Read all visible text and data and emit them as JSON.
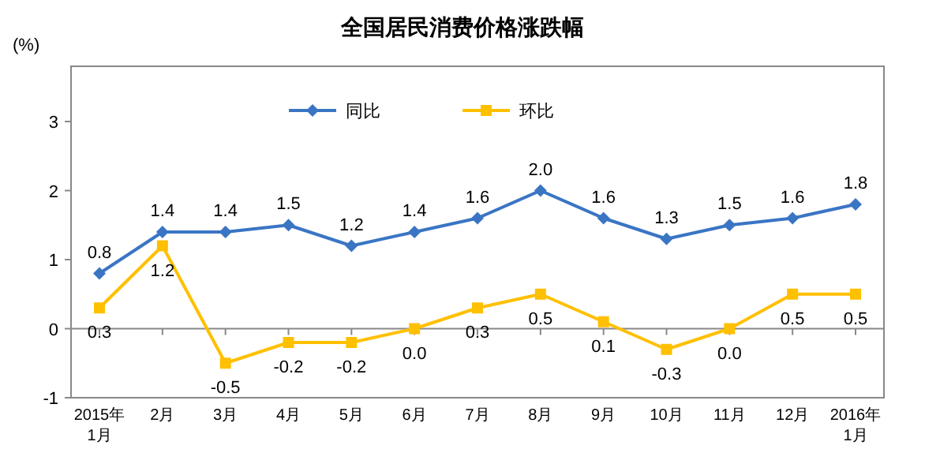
{
  "chart_data": {
    "type": "line",
    "title": "全国居民消费价格涨跌幅",
    "ylabel": "(%)",
    "categories": [
      "2015年\n1月",
      "2月",
      "3月",
      "4月",
      "5月",
      "6月",
      "7月",
      "8月",
      "9月",
      "10月",
      "11月",
      "12月",
      "2016年\n1月"
    ],
    "series": [
      {
        "name": "同比",
        "color": "#3a75c4",
        "marker": "diamond",
        "values": [
          0.8,
          1.4,
          1.4,
          1.5,
          1.2,
          1.4,
          1.6,
          2.0,
          1.6,
          1.3,
          1.5,
          1.6,
          1.8
        ],
        "value_labels": [
          "0.8",
          "1.4",
          "1.4",
          "1.5",
          "1.2",
          "1.4",
          "1.6",
          "2.0",
          "1.6",
          "1.3",
          "1.5",
          "1.6",
          "1.8"
        ]
      },
      {
        "name": "环比",
        "color": "#ffc000",
        "marker": "square",
        "values": [
          0.3,
          1.2,
          -0.5,
          -0.2,
          -0.2,
          0.0,
          0.3,
          0.5,
          0.1,
          -0.3,
          0.0,
          0.5,
          0.5
        ],
        "value_labels": [
          "0.3",
          "1.2",
          "-0.5",
          "-0.2",
          "-0.2",
          "0.0",
          "0.3",
          "0.5",
          "0.1",
          "-0.3",
          "0.0",
          "0.5",
          "0.5"
        ]
      }
    ],
    "ylim": [
      -1,
      3.8
    ],
    "yticks": [
      -1,
      0,
      1,
      2,
      3
    ],
    "legend": "top"
  }
}
